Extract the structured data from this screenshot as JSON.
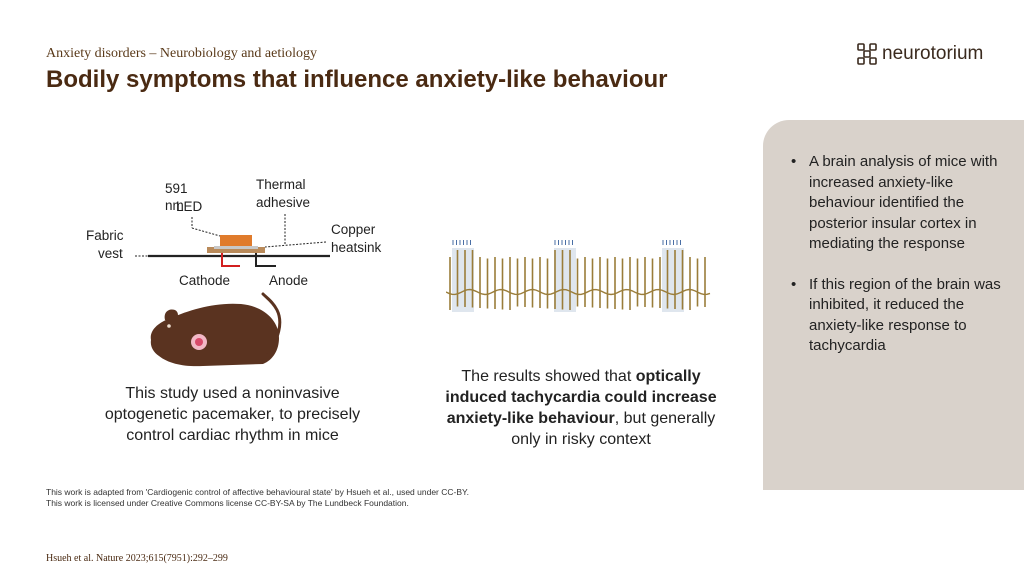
{
  "header": {
    "subtitle": "Anxiety disorders – Neurobiology and aetiology",
    "title": "Bodily symptoms that influence anxiety-like behaviour",
    "brand": "neurotorium"
  },
  "diagram": {
    "led_label_1": "591 nm",
    "led_label_2": "LED",
    "thermal_1": "Thermal",
    "thermal_2": "adhesive",
    "copper_1": "Copper",
    "copper_2": "heatsink",
    "fabric_1": "Fabric",
    "fabric_2": "vest",
    "cathode": "Cathode",
    "anode": "Anode"
  },
  "captions": {
    "left": "This study used a noninvasive optogenetic pacemaker, to precisely control cardiac rhythm in mice",
    "right_pre": "The results showed that ",
    "right_bold": "optically induced tachycardia could increase anxiety-like behaviour",
    "right_post": ", but generally only in risky context"
  },
  "side_panel": {
    "bullets": [
      "A brain analysis of mice with increased anxiety-like behaviour identified the posterior insular cortex in mediating the response",
      "If this region of the brain was inhibited, it reduced the anxiety-like response to tachycardia"
    ]
  },
  "footer": {
    "credit_1": "This work is adapted from 'Cardiogenic control of affective behavioural state' by Hsueh et al., used under CC-BY.",
    "credit_2": "This work is licensed under Creative Commons license CC-BY-SA by The Lundbeck Foundation.",
    "reference": "Hsueh et al. Nature 2023;615(7951):292–299"
  },
  "colors": {
    "title": "#4a2a12",
    "panel": "#d9d2cb",
    "trace": "#9a7d3a",
    "led": "#e07b2c",
    "mouse": "#5a3320"
  }
}
